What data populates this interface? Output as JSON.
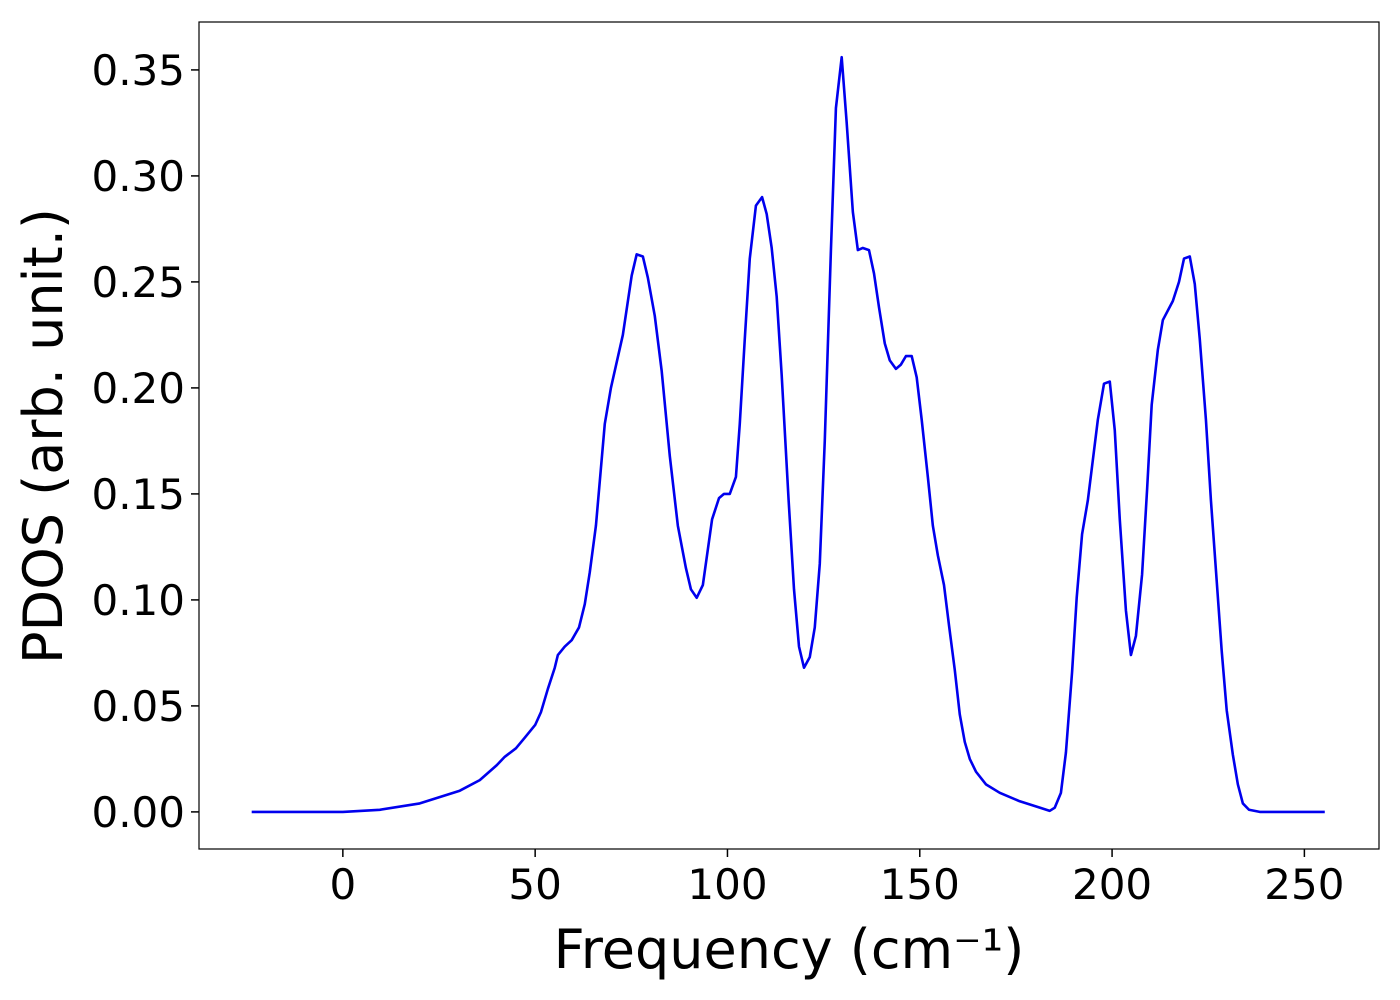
{
  "chart_data": {
    "type": "line",
    "xlabel": "Frequency (cm⁻¹)",
    "ylabel": "PDOS (arb. unit.)",
    "xlim": [
      -37.4,
      269.4
    ],
    "ylim": [
      -0.0175,
      0.3726
    ],
    "xticks": [
      0,
      50,
      100,
      150,
      200,
      250
    ],
    "yticks": [
      {
        "value": 0,
        "label": "0.00"
      },
      {
        "value": 0.05,
        "label": "0.05"
      },
      {
        "value": 0.1,
        "label": "0.10"
      },
      {
        "value": 0.15,
        "label": "0.15"
      },
      {
        "value": 0.2,
        "label": "0.20"
      },
      {
        "value": 0.25,
        "label": "0.25"
      },
      {
        "value": 0.3,
        "label": "0.30"
      },
      {
        "value": 0.35,
        "label": "0.35"
      }
    ],
    "grid": false,
    "series": [
      {
        "color": "#0000ee",
        "x": [
          -23.7,
          0,
          9.6,
          20,
          30.4,
          35.6,
          40,
          42.1,
          45,
          47.3,
          50,
          51.5,
          53.3,
          55.1,
          55.9,
          57.7,
          59.5,
          61.4,
          62.9,
          64.2,
          65.8,
          68.1,
          69.7,
          72.8,
          75.1,
          76.4,
          78,
          79.3,
          81.1,
          82.9,
          85,
          87.1,
          89.2,
          90.5,
          92,
          93.6,
          96,
          97.8,
          99.1,
          100.6,
          102.2,
          103.2,
          104.5,
          105.8,
          107.4,
          109,
          110.2,
          111.5,
          112.8,
          114.1,
          115.9,
          117.3,
          118.6,
          119.9,
          121.4,
          122.7,
          124,
          125.3,
          126.9,
          128.2,
          129.7,
          131,
          132.6,
          133.9,
          135.2,
          136.8,
          138.1,
          139.4,
          140.9,
          142.2,
          143.8,
          145.1,
          146.4,
          147.9,
          149.2,
          150.5,
          152.1,
          153.4,
          154.7,
          156.3,
          157.6,
          159.1,
          160.4,
          161.7,
          163,
          164.6,
          167.2,
          170.8,
          176,
          181.2,
          183.8,
          185.1,
          186.7,
          188,
          189.6,
          190.8,
          192.2,
          193.7,
          195,
          196.3,
          197.9,
          199.4,
          200.7,
          202,
          203.6,
          204.9,
          206.2,
          207.8,
          209.1,
          210.3,
          211.9,
          213.2,
          215.8,
          217.4,
          218.7,
          220.2,
          221.5,
          222.8,
          224.4,
          225.7,
          227.2,
          228.5,
          229.8,
          231.4,
          232.7,
          234,
          235.6,
          238.4,
          255.3
        ],
        "values": [
          0,
          0,
          0.001,
          0.004,
          0.01,
          0.015,
          0.022,
          0.026,
          0.03,
          0.035,
          0.041,
          0.047,
          0.058,
          0.068,
          0.074,
          0.078,
          0.081,
          0.087,
          0.098,
          0.113,
          0.135,
          0.183,
          0.2,
          0.225,
          0.253,
          0.263,
          0.262,
          0.252,
          0.234,
          0.208,
          0.168,
          0.135,
          0.115,
          0.105,
          0.101,
          0.107,
          0.138,
          0.148,
          0.15,
          0.15,
          0.158,
          0.183,
          0.223,
          0.261,
          0.286,
          0.29,
          0.282,
          0.266,
          0.243,
          0.206,
          0.147,
          0.105,
          0.078,
          0.068,
          0.073,
          0.087,
          0.117,
          0.175,
          0.265,
          0.332,
          0.356,
          0.325,
          0.283,
          0.265,
          0.266,
          0.265,
          0.254,
          0.238,
          0.221,
          0.213,
          0.209,
          0.211,
          0.215,
          0.215,
          0.205,
          0.185,
          0.158,
          0.135,
          0.121,
          0.107,
          0.088,
          0.067,
          0.046,
          0.033,
          0.025,
          0.019,
          0.013,
          0.009,
          0.005,
          0.002,
          0.0005,
          0.002,
          0.009,
          0.028,
          0.066,
          0.101,
          0.131,
          0.147,
          0.166,
          0.185,
          0.202,
          0.203,
          0.18,
          0.138,
          0.095,
          0.074,
          0.083,
          0.112,
          0.152,
          0.192,
          0.218,
          0.232,
          0.241,
          0.25,
          0.261,
          0.262,
          0.249,
          0.223,
          0.185,
          0.147,
          0.109,
          0.076,
          0.048,
          0.027,
          0.013,
          0.004,
          0.001,
          0,
          0
        ]
      }
    ]
  }
}
